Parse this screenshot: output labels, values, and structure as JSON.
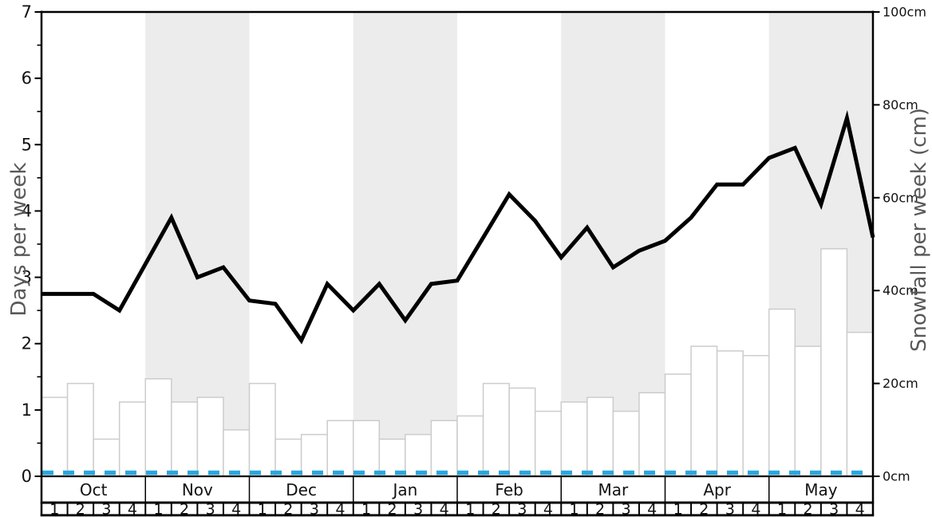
{
  "chart_data": {
    "type": "line+bar",
    "title": "",
    "months": [
      "Oct",
      "Nov",
      "Dec",
      "Jan",
      "Feb",
      "Mar",
      "Apr",
      "May"
    ],
    "week_labels": [
      "1",
      "2",
      "3",
      "4"
    ],
    "shaded_months": [
      "Nov",
      "Jan",
      "Mar",
      "May"
    ],
    "left_axis": {
      "label": "Days per week",
      "min": 0,
      "max": 7,
      "tick_values": [
        0,
        1,
        2,
        3,
        4,
        5,
        6,
        7
      ],
      "tick_labels": [
        "0",
        "1",
        "2",
        "3",
        "4",
        "5",
        "6",
        "7"
      ],
      "minor_tick_step": 0.5
    },
    "right_axis": {
      "label": "Snowfall per week (cm)",
      "min": 0,
      "max": 100,
      "tick_values": [
        0,
        20,
        40,
        60,
        80,
        100
      ],
      "tick_labels": [
        "0cm",
        "20cm",
        "40cm",
        "60cm",
        "80cm",
        "100cm"
      ]
    },
    "series": [
      {
        "name": "days-per-week-line",
        "type": "line",
        "axis": "left",
        "color": "#000000",
        "values": [
          2.75,
          2.75,
          2.75,
          2.5,
          3.2,
          3.9,
          3.0,
          3.15,
          2.65,
          2.6,
          2.05,
          2.9,
          2.5,
          2.9,
          2.35,
          2.9,
          2.95,
          3.6,
          4.25,
          3.85,
          3.3,
          3.75,
          3.15,
          3.4,
          3.55,
          3.9,
          4.4,
          4.4,
          4.8,
          4.95,
          4.1,
          5.4,
          3.6
        ]
      },
      {
        "name": "snowfall-per-week-bars",
        "type": "bar",
        "axis": "right",
        "unit": "cm",
        "fill": "#ffffff",
        "stroke": "#cccccc",
        "values": [
          17,
          20,
          8,
          16,
          21,
          16,
          17,
          10,
          20,
          8,
          9,
          12,
          12,
          8,
          9,
          12,
          13,
          20,
          19,
          14,
          16,
          17,
          14,
          18,
          22,
          28,
          27,
          26,
          36,
          28,
          49,
          31
        ]
      },
      {
        "name": "baseline-dashed-line",
        "type": "dashed-line",
        "axis": "left",
        "color": "#29A8E0",
        "value": 0
      }
    ],
    "colors": {
      "band": "#ECECEC",
      "frame": "#000000",
      "axis_title": "#595959",
      "tick_text": "#111111"
    },
    "legend_position": "none",
    "grid": "off"
  }
}
